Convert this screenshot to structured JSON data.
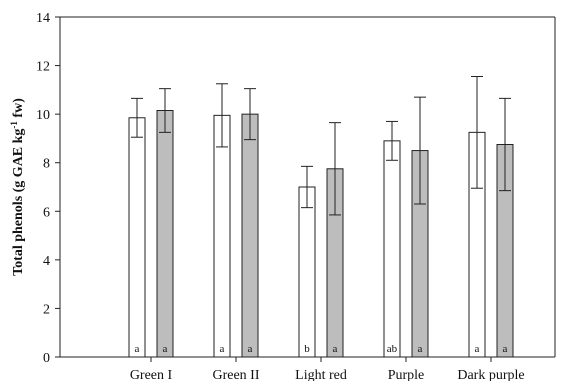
{
  "chart_data": {
    "type": "bar",
    "title": "",
    "ylabel": "Total phenols (g GAE kg",
    "ylabel_sup": "-1",
    "ylabel_tail": " fw)",
    "xlabel": "",
    "ylim": [
      0,
      14
    ],
    "yticks": [
      0,
      2,
      4,
      6,
      8,
      10,
      12,
      14
    ],
    "grid": false,
    "categories": [
      "Green I",
      "Green II",
      "Light red",
      "Purple",
      "Dark purple"
    ],
    "series": [
      {
        "fill": "#ffffff",
        "values": [
          9.85,
          9.95,
          7.0,
          8.9,
          9.25
        ],
        "errors": [
          0.8,
          1.3,
          0.85,
          0.8,
          2.3
        ],
        "letters": [
          "a",
          "a",
          "b",
          "ab",
          "a"
        ]
      },
      {
        "fill": "#bdbdbd",
        "values": [
          10.15,
          10.0,
          7.75,
          8.5,
          8.75
        ],
        "errors": [
          0.9,
          1.05,
          1.9,
          2.2,
          1.9
        ],
        "letters": [
          "a",
          "a",
          "a",
          "a",
          "a"
        ]
      }
    ]
  }
}
